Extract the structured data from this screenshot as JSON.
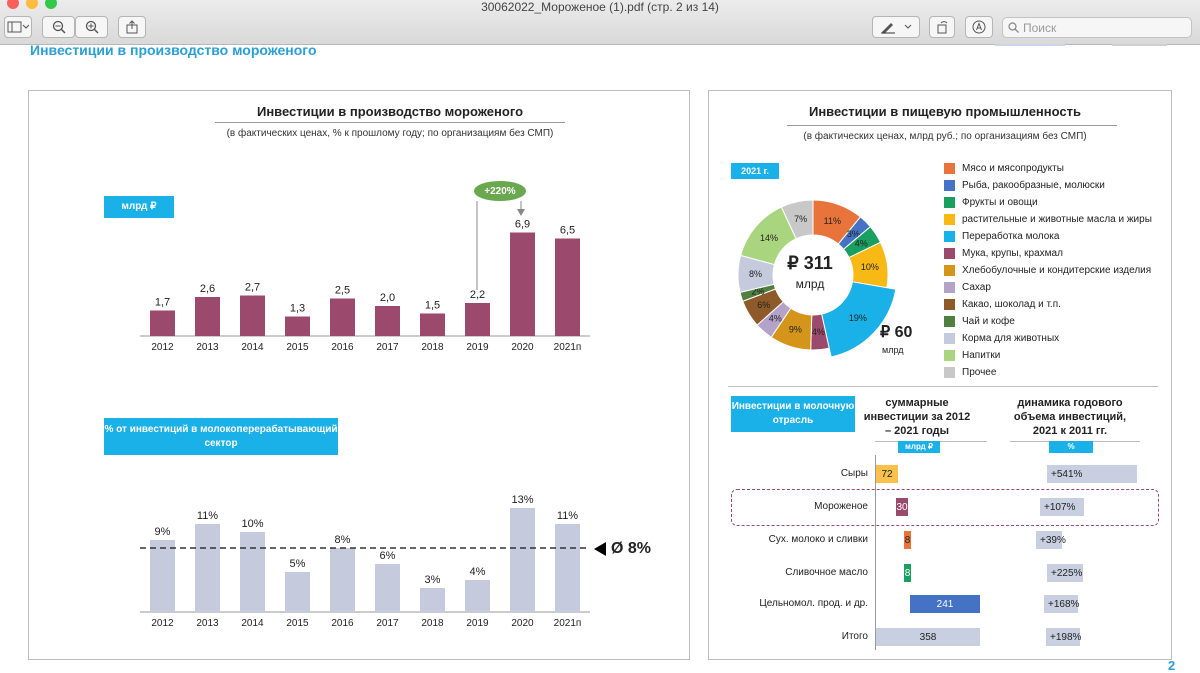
{
  "window": {
    "title": "30062022_Мороженое (1).pdf (стр. 2 из 14)",
    "search_placeholder": "Поиск"
  },
  "page": {
    "title": "Инвестиции в производство мороженого",
    "page_number": "2"
  },
  "left_chart": {
    "title": "Инвестиции в производство мороженого",
    "subtitle": "(в фактических ценах, % к прошлому году; по организациям без СМП)",
    "unit_badge": "млрд ₽",
    "growth_badge": "+220%",
    "pct_badge": "% от инвестиций в молокоперерабатывающий сектор",
    "avg_label": "Ø 8%"
  },
  "right_chart": {
    "title": "Инвестиции в пищевую промышленность",
    "subtitle": "(в фактических ценах, млрд руб.; по организациям без СМП)",
    "year_badge": "2021 г.",
    "total_value": "₽ 311",
    "total_unit": "млрд",
    "highlight_value": "₽ 60",
    "highlight_unit": "млрд",
    "legend": [
      {
        "label": "Мясо и мясопродукты",
        "color": "#e8743b"
      },
      {
        "label": "Рыба, ракообразные, молюски",
        "color": "#4472c4"
      },
      {
        "label": "Фрукты и овощи",
        "color": "#19a060"
      },
      {
        "label": "растительные и животные масла и жиры",
        "color": "#f9b915"
      },
      {
        "label": "Переработка молока",
        "color": "#1ab0e8"
      },
      {
        "label": "Мука, крупы, крахмал",
        "color": "#9b4a6e"
      },
      {
        "label": "Хлебобулочные и кондитерские изделия",
        "color": "#d4951a"
      },
      {
        "label": "Сахар",
        "color": "#b4a2c9"
      },
      {
        "label": "Какао, шоколад и т.п.",
        "color": "#8e5a2a"
      },
      {
        "label": "Чай и кофе",
        "color": "#4f8040"
      },
      {
        "label": "Корма для животных",
        "color": "#c5cbdc"
      },
      {
        "label": "Напитки",
        "color": "#a8d57e"
      },
      {
        "label": "Прочее",
        "color": "#c8c8c8"
      }
    ]
  },
  "dairy": {
    "badge": "Инвестиции в молочную отрасль",
    "col1_title": "суммарные инвестиции за 2012 – 2021 годы",
    "col1_unit": "млрд ₽",
    "col2_title": "динамика годового объема инвестиций, 2021 к 2011 гг.",
    "col2_unit": "%",
    "rows": [
      {
        "label": "Сыры",
        "value": "72",
        "pct": "+541%"
      },
      {
        "label": "Мороженое",
        "value": "30",
        "pct": "+107%"
      },
      {
        "label": "Сух. молоко и сливки",
        "value": "8",
        "pct": "+39%"
      },
      {
        "label": "Сливочное масло",
        "value": "8",
        "pct": "+225%"
      },
      {
        "label": "Цельномол. прод. и др.",
        "value": "241",
        "pct": "+168%"
      },
      {
        "label": "Итого",
        "value": "358",
        "pct": "+198%"
      }
    ]
  },
  "chart_data": [
    {
      "type": "bar",
      "title": "Инвестиции в производство мороженого",
      "ylabel": "млрд ₽",
      "categories": [
        "2012",
        "2013",
        "2014",
        "2015",
        "2016",
        "2017",
        "2018",
        "2019",
        "2020",
        "2021п"
      ],
      "values": [
        1.7,
        2.6,
        2.7,
        1.3,
        2.5,
        2.0,
        1.5,
        2.2,
        6.9,
        6.5
      ],
      "value_labels": [
        "1,7",
        "2,6",
        "2,7",
        "1,3",
        "2,5",
        "2,0",
        "1,5",
        "2,2",
        "6,9",
        "6,5"
      ],
      "ylim": [
        0,
        8
      ],
      "color": "#9b4a6e"
    },
    {
      "type": "bar",
      "title": "% от инвестиций в молокоперерабатывающий сектор",
      "categories": [
        "2012",
        "2013",
        "2014",
        "2015",
        "2016",
        "2017",
        "2018",
        "2019",
        "2020",
        "2021п"
      ],
      "values": [
        9,
        11,
        10,
        5,
        8,
        6,
        3,
        4,
        13,
        11
      ],
      "value_labels": [
        "9%",
        "11%",
        "10%",
        "5%",
        "8%",
        "6%",
        "3%",
        "4%",
        "13%",
        "11%"
      ],
      "average": 8,
      "ylim": [
        0,
        15
      ],
      "color": "#c5cbdc"
    },
    {
      "type": "pie",
      "title": "Инвестиции в пищевую промышленность",
      "labels": [
        "Мясо и мясопродукты",
        "Рыба, ракообразные, молюски",
        "Фрукты и овощи",
        "растительные и животные масла и жиры",
        "Переработка молока",
        "Мука, крупы, крахмал",
        "Хлебобулочные и кондитерские изделия",
        "Сахар",
        "Какао, шоколад и т.п.",
        "Чай и кофе",
        "Корма для животных",
        "Напитки",
        "Прочее"
      ],
      "values": [
        11,
        3,
        4,
        10,
        19,
        4,
        9,
        4,
        6,
        2,
        8,
        14,
        7
      ],
      "value_labels": [
        "11%",
        "3%",
        "4%",
        "10%",
        "19%",
        "4%",
        "9%",
        "4%",
        "6%",
        "2%",
        "8%",
        "14%",
        "7%"
      ],
      "total": "₽ 311 млрд"
    },
    {
      "type": "bar",
      "title": "суммарные инвестиции за 2012 – 2021 годы",
      "categories": [
        "Сыры",
        "Мороженое",
        "Сух. молоко и сливки",
        "Сливочное масло",
        "Цельномол. прод. и др.",
        "Итого"
      ],
      "values": [
        72,
        30,
        8,
        8,
        241,
        358
      ],
      "pct_change": [
        541,
        107,
        39,
        225,
        168,
        198
      ]
    }
  ]
}
